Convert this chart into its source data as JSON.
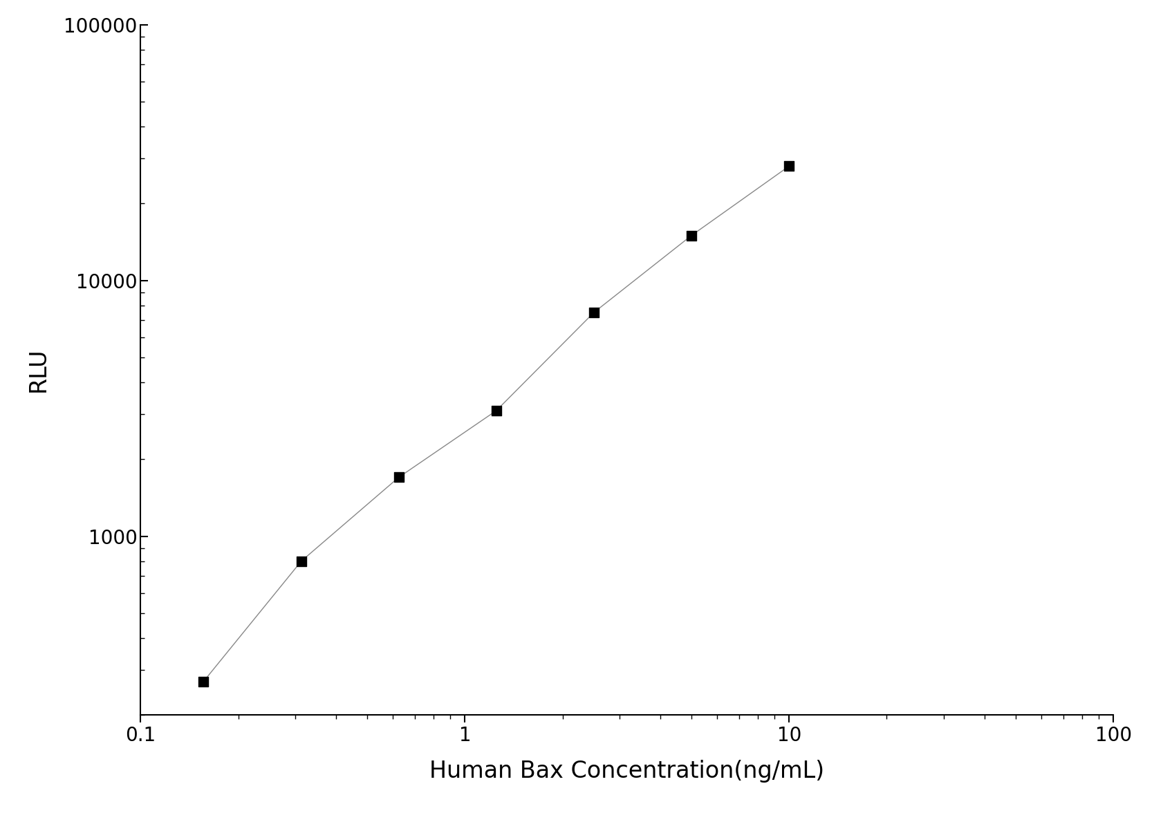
{
  "x_values": [
    0.156,
    0.313,
    0.625,
    1.25,
    2.5,
    5.0,
    10.0
  ],
  "y_values": [
    270,
    800,
    1700,
    3100,
    7500,
    15000,
    28000
  ],
  "xlabel": "Human Bax Concentration(ng/mL)",
  "ylabel": "RLU",
  "xlim": [
    0.1,
    100
  ],
  "ylim": [
    200,
    100000
  ],
  "line_color": "#888888",
  "marker_color": "#000000",
  "marker_style": "s",
  "marker_size": 10,
  "line_width": 1.0,
  "xlabel_fontsize": 24,
  "ylabel_fontsize": 24,
  "tick_fontsize": 20,
  "background_color": "#ffffff",
  "spine_color": "#000000"
}
